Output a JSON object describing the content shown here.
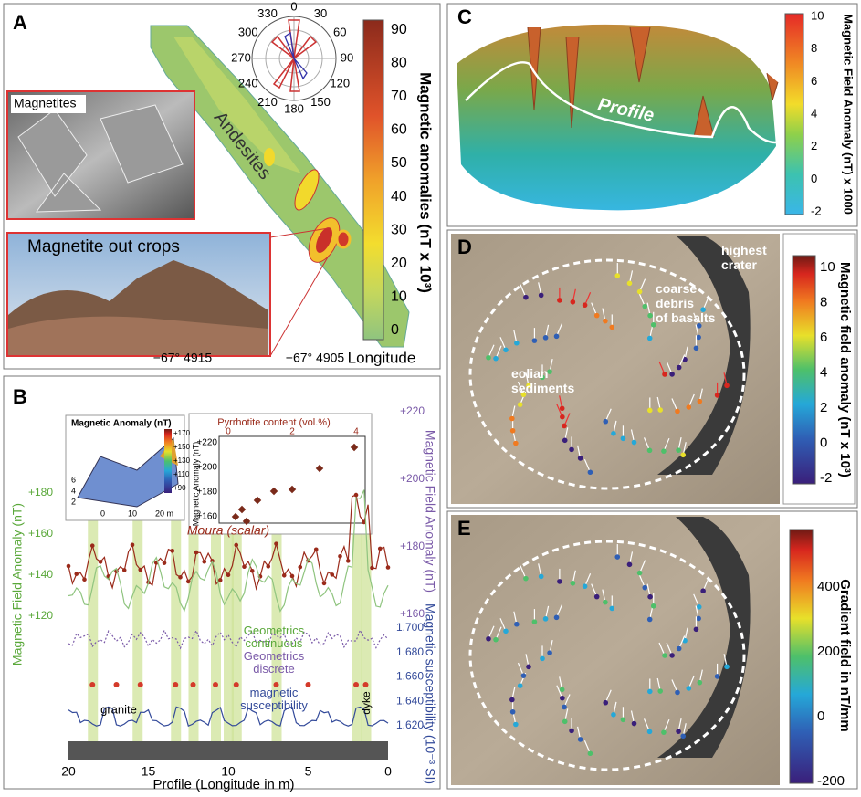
{
  "panel_a": {
    "label": "A",
    "photo_labels": [
      "Magnetites",
      "Magnetite out crops"
    ],
    "unit_label": "Andesites",
    "rose_ticks": [
      0,
      30,
      60,
      90,
      120,
      150,
      180,
      210,
      240,
      270,
      300,
      330
    ],
    "colorbar_title": "Magnetic anomalies (nT x 10³)",
    "colorbar_ticks": [
      0,
      10,
      20,
      30,
      40,
      50,
      60,
      70,
      80,
      90
    ],
    "x_ticks": [
      "−67° 4915",
      "−67° 4905"
    ],
    "x_label": "Longitude"
  },
  "panel_b": {
    "label": "B",
    "inset_surface": {
      "title": "Magnetic Anomaly (nT)",
      "colorbar_ticks": [
        "+170",
        "+150",
        "+130",
        "+110",
        "+90"
      ],
      "x_ticks": [
        "0",
        "10",
        "20 m"
      ],
      "y_ticks": [
        "2",
        "4",
        "6"
      ]
    },
    "inset_scatter": {
      "title": "Pyrrhotite content (vol.%)",
      "x_ticks": [
        0,
        2,
        4
      ],
      "y_label": "Magnetic Anomaly (nT)",
      "y_ticks": [
        "+160",
        "+180",
        "+200",
        "+220"
      ]
    },
    "left_axis_label": "Magnetic Field Anomaly (nT)",
    "left_ticks": [
      "+120",
      "+140",
      "+160",
      "+180"
    ],
    "right_axis_label": "Magnetic Field Anomaly (nT)",
    "right_ticks": [
      "+160",
      "+180",
      "+200",
      "+220"
    ],
    "susceptibility_label": "Magnetic susceptibility (10⁻³ SI)",
    "susceptibility_ticks": [
      "1.620",
      "1.640",
      "1.660",
      "1.680",
      "1.700"
    ],
    "x_ticks": [
      20,
      15,
      10,
      5,
      0
    ],
    "x_label": "Profile (Longitude in m)",
    "annotations": [
      "Moura (scalar)",
      "Geometrics continuous",
      "Geometrics discrete",
      "magnetic susceptibility",
      "granite",
      "dyke"
    ]
  },
  "panel_c": {
    "label": "C",
    "profile_label": "Profile",
    "colorbar_title": "Magnetic Field Anomaly (nT) x 1000",
    "colorbar_ticks": [
      10,
      8,
      6,
      4,
      2,
      0,
      -2
    ]
  },
  "panel_d": {
    "label": "D",
    "annotations": [
      "highest crater",
      "coarse debris of basalts",
      "eolian sediments"
    ],
    "colorbar_title": "Magnetic field anomaly (nT x 10³)",
    "colorbar_ticks": [
      10,
      8,
      6,
      4,
      2,
      0,
      -2
    ]
  },
  "panel_e": {
    "label": "E",
    "colorbar_title": "Gradient field in nT/mm",
    "colorbar_ticks": [
      400,
      200,
      0,
      -200
    ]
  }
}
